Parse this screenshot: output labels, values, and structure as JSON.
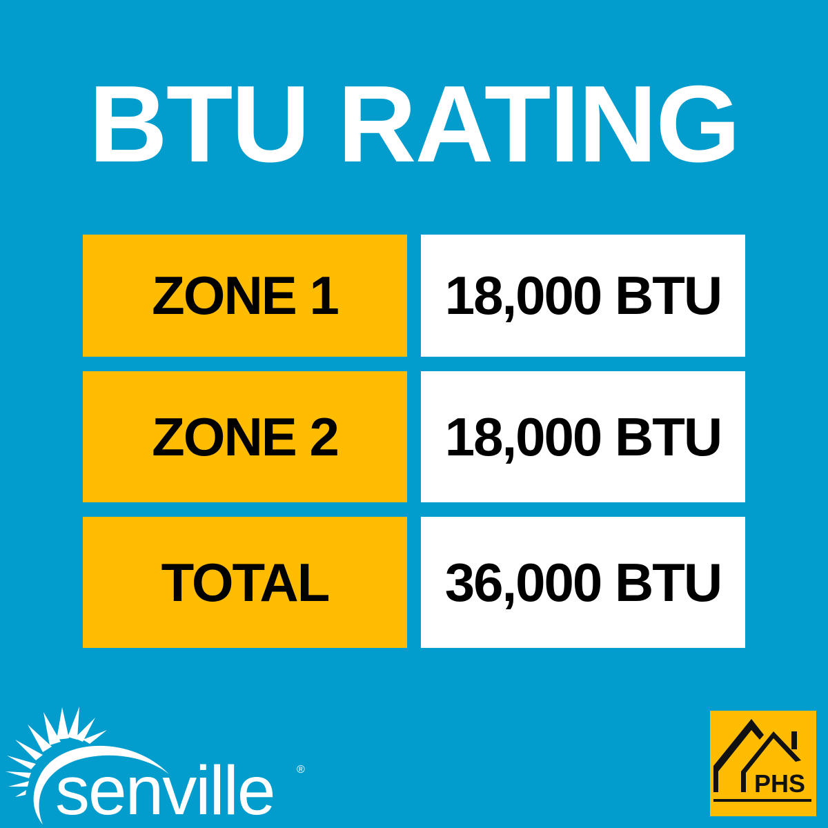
{
  "title": "BTU RATING",
  "rows": [
    {
      "label": "ZONE 1",
      "value": "18,000 BTU"
    },
    {
      "label": "ZONE 2",
      "value": "18,000 BTU"
    },
    {
      "label": "TOTAL",
      "value": "36,000 BTU"
    }
  ],
  "logos": {
    "senville": "senville",
    "senville_mark": "®",
    "phs": "PHS"
  },
  "colors": {
    "background": "#029ccd",
    "label_bg": "#ffbc00",
    "value_bg": "#ffffff"
  }
}
